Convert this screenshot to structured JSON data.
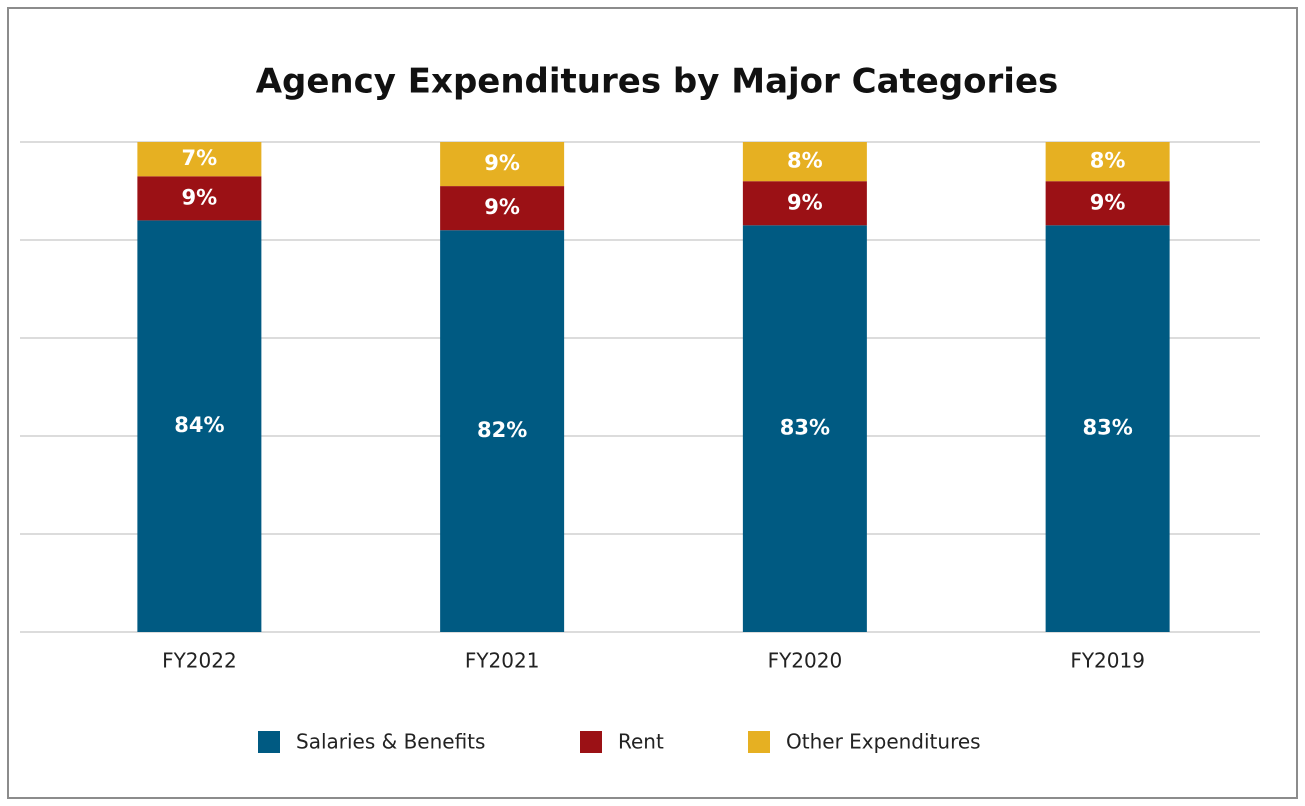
{
  "chart_data": {
    "type": "stacked_bar",
    "title": "Agency Expenditures by Major Categories",
    "categories": [
      "FY2022",
      "FY2021",
      "FY2020",
      "FY2019"
    ],
    "series": [
      {
        "name": "Salaries & Benefits",
        "color": "#005a82",
        "values": [
          84,
          82,
          83,
          83
        ],
        "value_labels": [
          "84%",
          "82%",
          "83%",
          "83%"
        ]
      },
      {
        "name": "Rent",
        "color": "#9b1115",
        "values": [
          9,
          9,
          9,
          9
        ],
        "value_labels": [
          "9%",
          "9%",
          "9%",
          "9%"
        ]
      },
      {
        "name": "Other Expenditures",
        "color": "#e6b022",
        "values": [
          7,
          9,
          8,
          8
        ],
        "value_labels": [
          "7%",
          "9%",
          "8%",
          "8%"
        ]
      }
    ],
    "ylim": [
      0,
      100
    ],
    "yticks": [
      0,
      20,
      40,
      60,
      80,
      100
    ],
    "grid": true,
    "legend": "bottom"
  }
}
